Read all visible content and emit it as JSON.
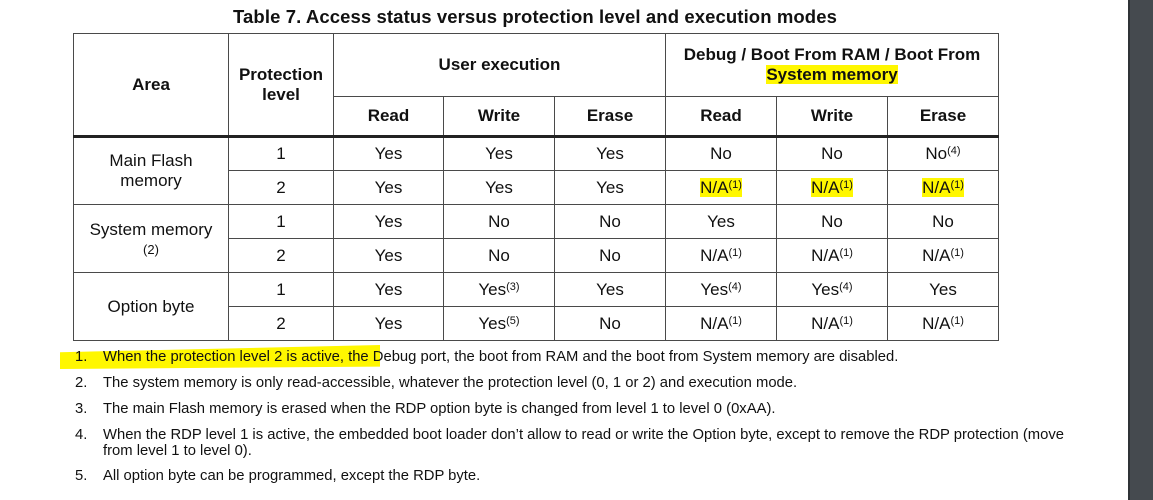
{
  "table": {
    "caption": "Table 7. Access status versus protection level and execution modes",
    "headers": {
      "area": "Area",
      "protection_level": "Protection level",
      "user_execution": "User execution",
      "debug_boot_line1": "Debug / Boot From RAM / Boot From",
      "debug_boot_line2": "System memory",
      "read": "Read",
      "write": "Write",
      "erase": "Erase"
    },
    "groups": [
      {
        "area": "Main Flash memory",
        "area_note": "",
        "rows": [
          {
            "level": "1",
            "cells": [
              [
                "Yes",
                ""
              ],
              [
                "Yes",
                ""
              ],
              [
                "Yes",
                ""
              ],
              [
                "No",
                ""
              ],
              [
                "No",
                ""
              ],
              [
                "No",
                "(4)"
              ]
            ]
          },
          {
            "level": "2",
            "cells": [
              [
                "Yes",
                ""
              ],
              [
                "Yes",
                ""
              ],
              [
                "Yes",
                ""
              ],
              [
                "N/A",
                "(1)"
              ],
              [
                "N/A",
                "(1)"
              ],
              [
                "N/A",
                "(1)"
              ]
            ]
          }
        ]
      },
      {
        "area": "System memory",
        "area_note": "(2)",
        "rows": [
          {
            "level": "1",
            "cells": [
              [
                "Yes",
                ""
              ],
              [
                "No",
                ""
              ],
              [
                "No",
                ""
              ],
              [
                "Yes",
                ""
              ],
              [
                "No",
                ""
              ],
              [
                "No",
                ""
              ]
            ]
          },
          {
            "level": "2",
            "cells": [
              [
                "Yes",
                ""
              ],
              [
                "No",
                ""
              ],
              [
                "No",
                ""
              ],
              [
                "N/A",
                "(1)"
              ],
              [
                "N/A",
                "(1)"
              ],
              [
                "N/A",
                "(1)"
              ]
            ]
          }
        ]
      },
      {
        "area": "Option byte",
        "area_note": "",
        "rows": [
          {
            "level": "1",
            "cells": [
              [
                "Yes",
                ""
              ],
              [
                "Yes",
                "(3)"
              ],
              [
                "Yes",
                ""
              ],
              [
                "Yes",
                "(4)"
              ],
              [
                "Yes",
                "(4)"
              ],
              [
                "Yes",
                ""
              ]
            ]
          },
          {
            "level": "2",
            "cells": [
              [
                "Yes",
                ""
              ],
              [
                "Yes",
                "(5)"
              ],
              [
                "No",
                ""
              ],
              [
                "N/A",
                "(1)"
              ],
              [
                "N/A",
                "(1)"
              ],
              [
                "N/A",
                "(1)"
              ]
            ]
          }
        ]
      }
    ]
  },
  "notes": [
    {
      "num": "1.",
      "text": "When the protection level 2 is active, the Debug port, the boot from RAM and the boot from System memory are disabled."
    },
    {
      "num": "2.",
      "text": "The system memory is only read-accessible, whatever the protection level (0, 1 or 2) and execution mode."
    },
    {
      "num": "3.",
      "text": "The main Flash memory is erased when the RDP option byte is changed from level 1 to level 0 (0xAA)."
    },
    {
      "num": "4.",
      "text": "When the RDP level 1 is active, the embedded boot loader don’t allow to read or write the Option byte, except to remove the RDP protection (move from level 1 to level 0)."
    },
    {
      "num": "5.",
      "text": "All option byte can be programmed, except the RDP byte."
    }
  ],
  "highlight_color": "#fff700"
}
